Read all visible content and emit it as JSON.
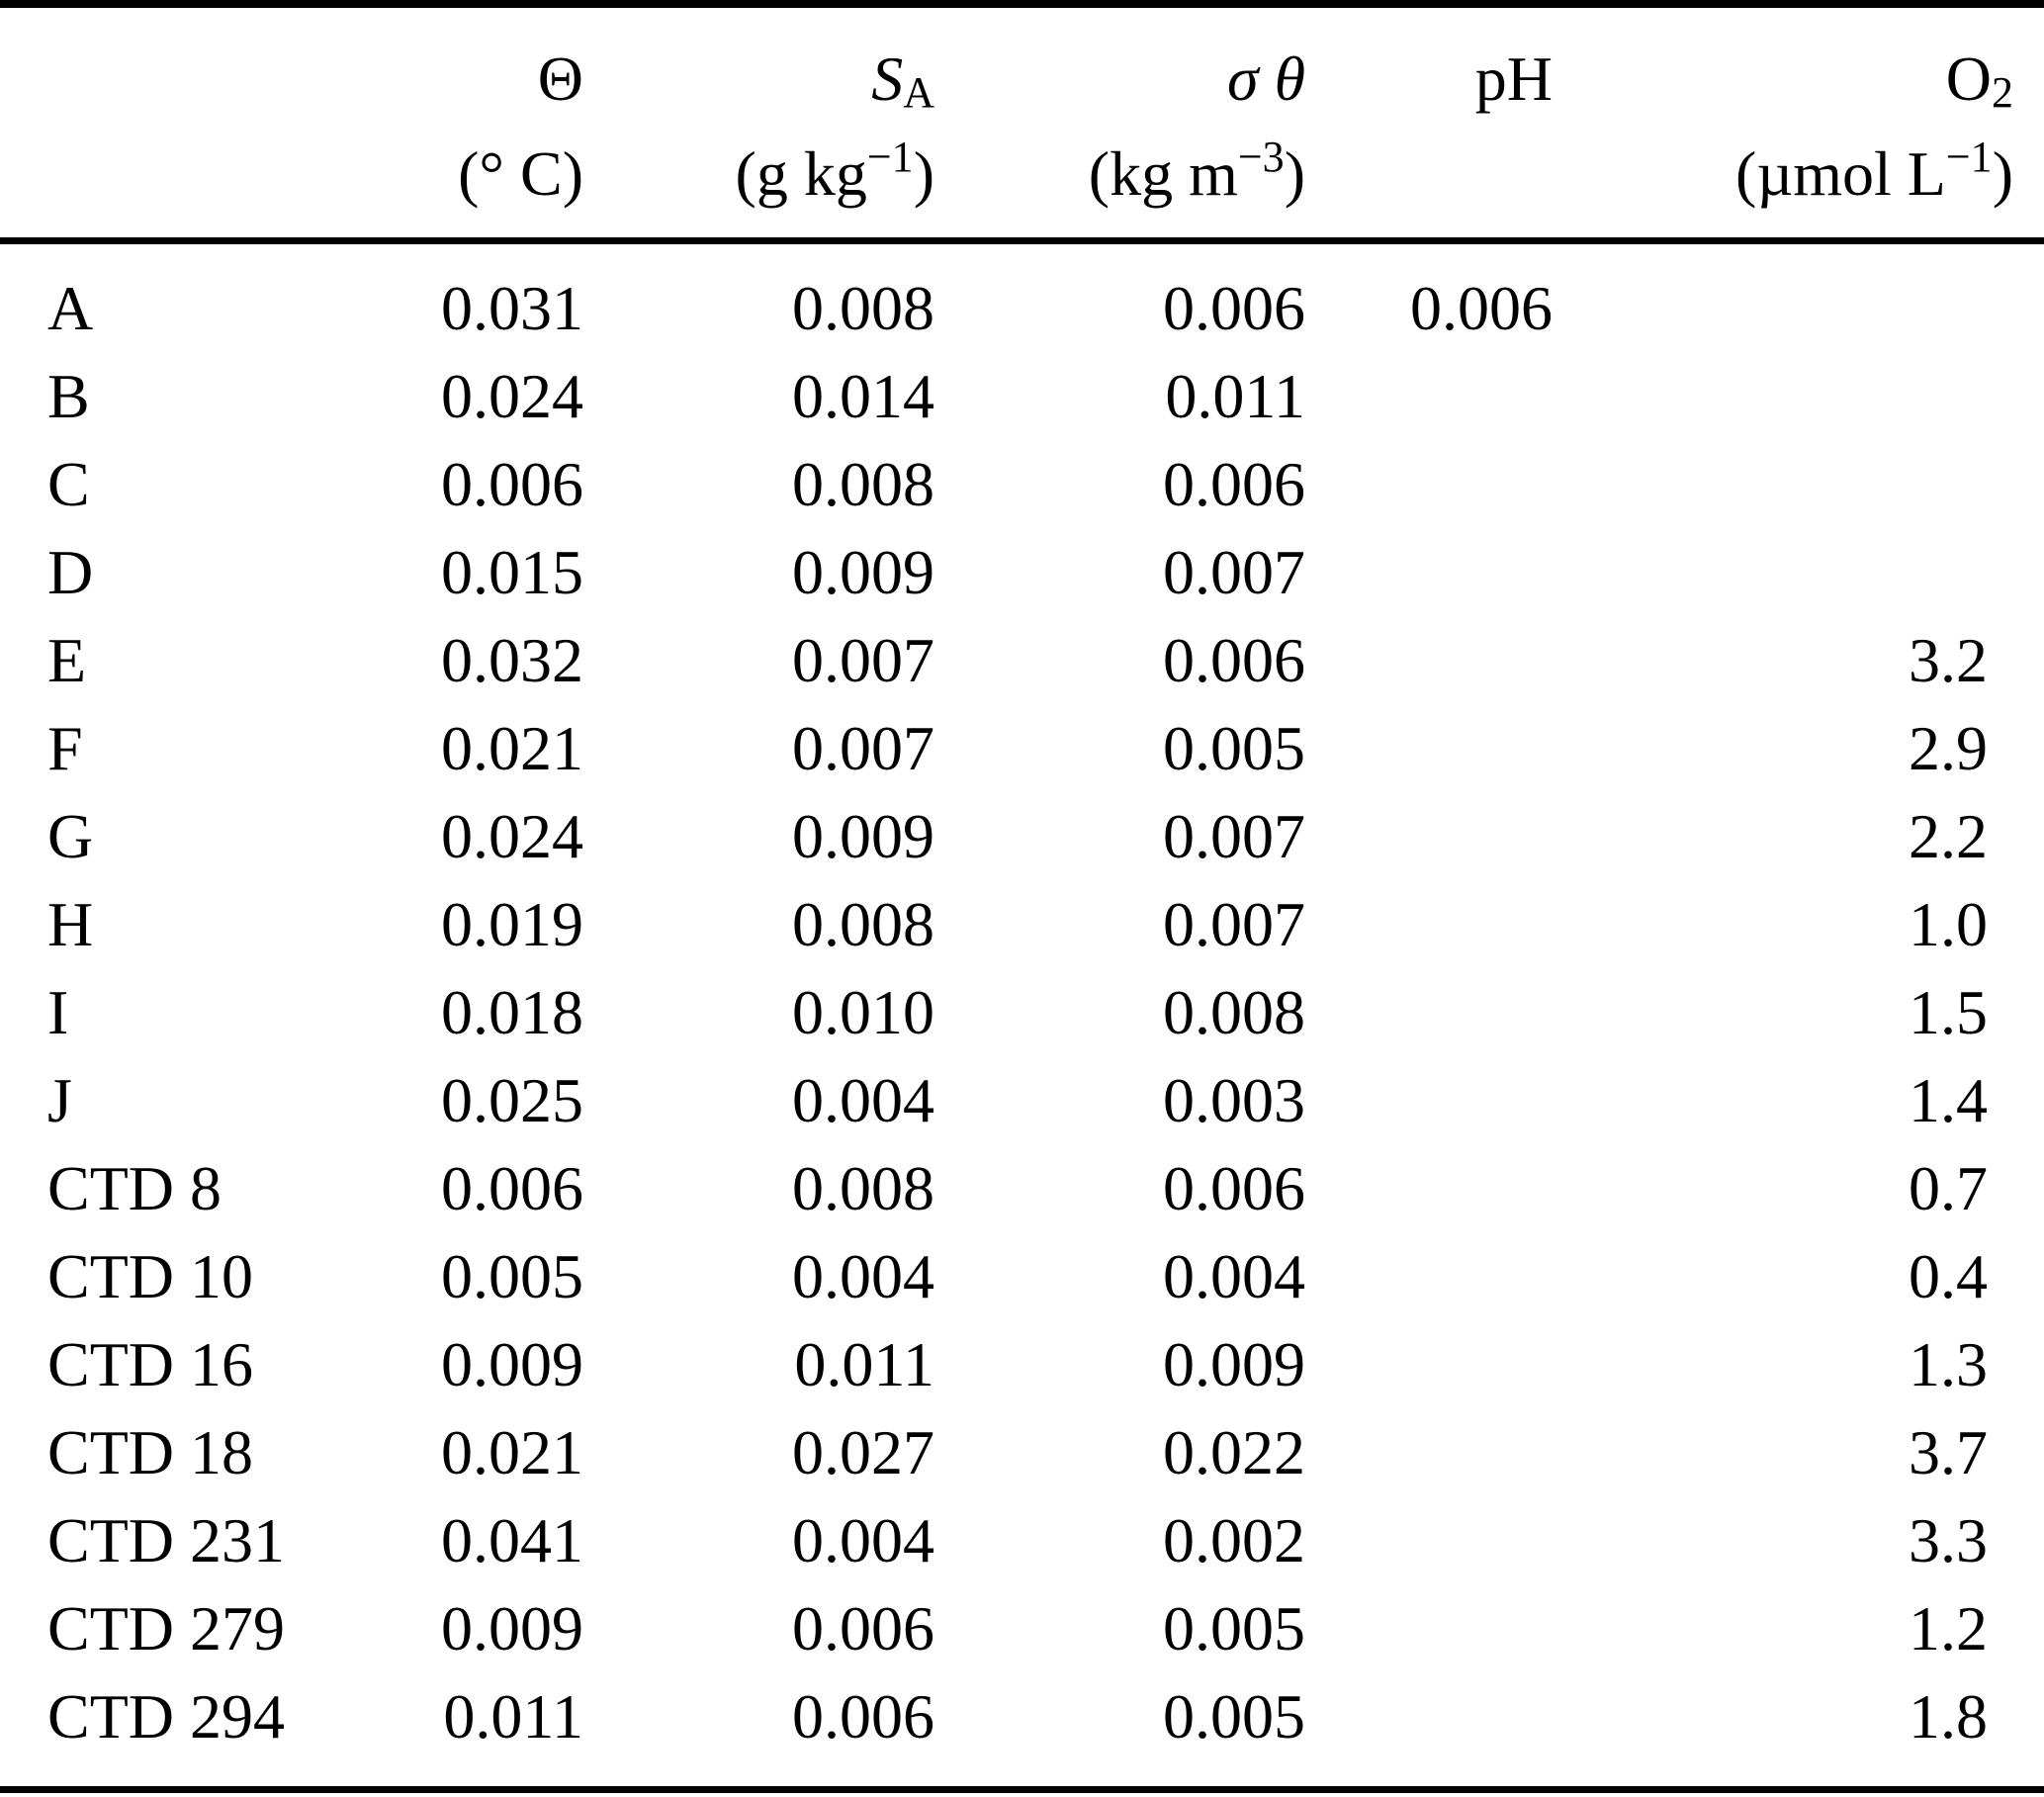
{
  "colors": {
    "background": "#ffffff",
    "text": "#000000",
    "rules": "#000000"
  },
  "table": {
    "columns": [
      {
        "key": "station",
        "symbol": "",
        "symbol_sub": "",
        "unit_pre": "",
        "unit_sup": "",
        "unit_post": ""
      },
      {
        "key": "theta",
        "symbol": "Θ",
        "symbol_sub": "",
        "unit_pre": "(° C)",
        "unit_sup": "",
        "unit_post": ""
      },
      {
        "key": "sa",
        "symbol": "S",
        "symbol_sub": "A",
        "unit_pre": "(g kg",
        "unit_sup": "−1",
        "unit_post": ")"
      },
      {
        "key": "sigma",
        "symbol": "σ θ",
        "symbol_sub": "",
        "unit_pre": "(kg m",
        "unit_sup": "−3",
        "unit_post": ")"
      },
      {
        "key": "ph",
        "symbol": "pH",
        "symbol_sub": "",
        "unit_pre": "",
        "unit_sup": "",
        "unit_post": ""
      },
      {
        "key": "o2",
        "symbol": "O",
        "symbol_sub": "2",
        "unit_pre": "(µmol L",
        "unit_sup": "−1",
        "unit_post": ")"
      }
    ],
    "rows": [
      [
        "A",
        "0.031",
        "0.008",
        "0.006",
        "0.006",
        ""
      ],
      [
        "B",
        "0.024",
        "0.014",
        "0.011",
        "",
        ""
      ],
      [
        "C",
        "0.006",
        "0.008",
        "0.006",
        "",
        ""
      ],
      [
        "D",
        "0.015",
        "0.009",
        "0.007",
        "",
        ""
      ],
      [
        "E",
        "0.032",
        "0.007",
        "0.006",
        "",
        "3.2"
      ],
      [
        "F",
        "0.021",
        "0.007",
        "0.005",
        "",
        "2.9"
      ],
      [
        "G",
        "0.024",
        "0.009",
        "0.007",
        "",
        "2.2"
      ],
      [
        "H",
        "0.019",
        "0.008",
        "0.007",
        "",
        "1.0"
      ],
      [
        "I",
        "0.018",
        "0.010",
        "0.008",
        "",
        "1.5"
      ],
      [
        "J",
        "0.025",
        "0.004",
        "0.003",
        "",
        "1.4"
      ],
      [
        "CTD 8",
        "0.006",
        "0.008",
        "0.006",
        "",
        "0.7"
      ],
      [
        "CTD 10",
        "0.005",
        "0.004",
        "0.004",
        "",
        "0.4"
      ],
      [
        "CTD 16",
        "0.009",
        "0.011",
        "0.009",
        "",
        "1.3"
      ],
      [
        "CTD 18",
        "0.021",
        "0.027",
        "0.022",
        "",
        "3.7"
      ],
      [
        "CTD 231",
        "0.041",
        "0.004",
        "0.002",
        "",
        "3.3"
      ],
      [
        "CTD 279",
        "0.009",
        "0.006",
        "0.005",
        "",
        "1.2"
      ],
      [
        "CTD 294",
        "0.011",
        "0.006",
        "0.005",
        "",
        "1.8"
      ]
    ]
  }
}
